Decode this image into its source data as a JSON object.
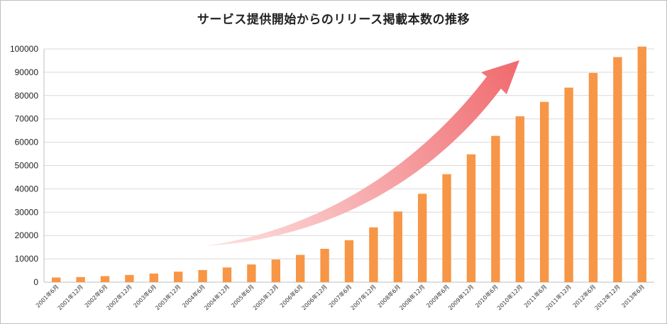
{
  "chart_data": {
    "type": "bar",
    "title": "サービス提供開始からのリリース掲載本数の推移",
    "xlabel": "",
    "ylabel": "",
    "ylim": [
      0,
      100000
    ],
    "yticks": [
      0,
      10000,
      20000,
      30000,
      40000,
      50000,
      60000,
      70000,
      80000,
      90000,
      100000
    ],
    "grid": true,
    "legend": "none",
    "bar_color": "#F79646",
    "arrow_colors": [
      "#FDE3E3",
      "#F06A6E"
    ],
    "categories": [
      "2001年6月",
      "2001年12月",
      "2002年6月",
      "2002年12月",
      "2003年6月",
      "2003年12月",
      "2004年6月",
      "2004年12月",
      "2005年6月",
      "2005年12月",
      "2006年6月",
      "2006年12月",
      "2007年6月",
      "2007年12月",
      "2008年6月",
      "2008年12月",
      "2009年6月",
      "2009年12月",
      "2010年6月",
      "2010年12月",
      "2011年6月",
      "2011年12月",
      "2012年6月",
      "2012年12月",
      "2013年6月"
    ],
    "values": [
      2000,
      2200,
      2600,
      3100,
      3700,
      4500,
      5200,
      6300,
      7600,
      9700,
      11700,
      14300,
      18000,
      23500,
      30300,
      37900,
      46300,
      54800,
      62700,
      71100,
      77300,
      83400,
      89700,
      96500,
      101000
    ]
  }
}
